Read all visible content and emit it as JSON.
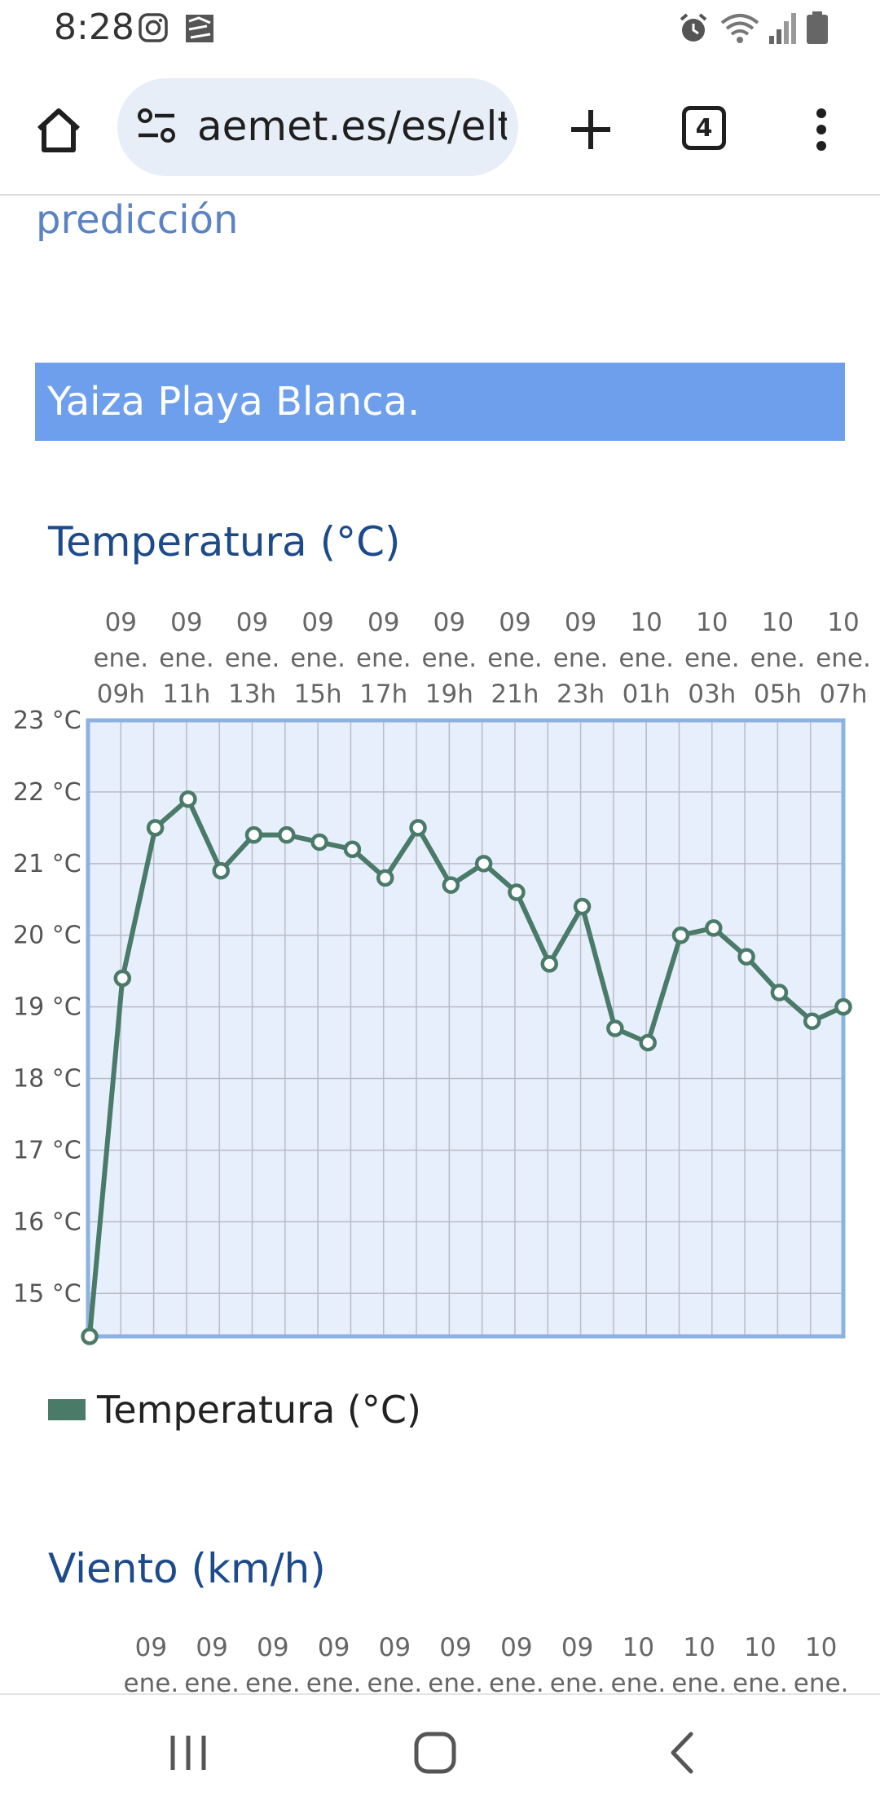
{
  "status": {
    "time": "8:28",
    "icons": [
      "instagram-icon",
      "app-icon",
      "alarm-icon",
      "wifi-icon",
      "signal-icon",
      "battery-icon"
    ]
  },
  "browser": {
    "url": "aemet.es/es/eltiempo/prediccion",
    "tab_count": "4",
    "icons": [
      "home-icon",
      "site-settings-icon",
      "new-tab-icon",
      "tabs-icon",
      "menu-icon"
    ]
  },
  "page": {
    "prediccion": "predicción",
    "location": "Yaiza Playa Blanca.",
    "temp_title": "Temperatura (°C)",
    "legend_label": "Temperatura (°C)",
    "wind_title": "Viento (km/h)"
  },
  "chart_data": {
    "type": "line",
    "title": "Temperatura (°C)",
    "x_tick_labels": [
      [
        "09",
        "ene.",
        "09h"
      ],
      [
        "09",
        "ene.",
        "11h"
      ],
      [
        "09",
        "ene.",
        "13h"
      ],
      [
        "09",
        "ene.",
        "15h"
      ],
      [
        "09",
        "ene.",
        "17h"
      ],
      [
        "09",
        "ene.",
        "19h"
      ],
      [
        "09",
        "ene.",
        "21h"
      ],
      [
        "09",
        "ene.",
        "23h"
      ],
      [
        "10",
        "ene.",
        "01h"
      ],
      [
        "10",
        "ene.",
        "03h"
      ],
      [
        "10",
        "ene.",
        "05h"
      ],
      [
        "10",
        "ene.",
        "07h"
      ]
    ],
    "y_ticks": [
      "15 °C",
      "16 °C",
      "17 °C",
      "18 °C",
      "19 °C",
      "20 °C",
      "21 °C",
      "22 °C",
      "23 °C"
    ],
    "ylim": [
      14.4,
      23
    ],
    "grid": true,
    "legend": "bottom-left",
    "series": [
      {
        "name": "Temperatura (°C)",
        "color": "#4a7a68",
        "values": [
          14.4,
          19.4,
          21.5,
          21.9,
          20.9,
          21.4,
          21.4,
          21.3,
          21.2,
          20.8,
          21.5,
          20.7,
          21.0,
          20.6,
          19.6,
          20.4,
          18.7,
          18.5,
          20.0,
          20.1,
          19.7,
          19.2,
          18.8,
          19.0
        ]
      }
    ]
  },
  "wind_chart": {
    "x_tick_labels": [
      [
        "09",
        "ene."
      ],
      [
        "09",
        "ene."
      ],
      [
        "09",
        "ene."
      ],
      [
        "09",
        "ene."
      ],
      [
        "09",
        "ene."
      ],
      [
        "09",
        "ene."
      ],
      [
        "09",
        "ene."
      ],
      [
        "09",
        "ene."
      ],
      [
        "10",
        "ene."
      ],
      [
        "10",
        "ene."
      ],
      [
        "10",
        "ene."
      ],
      [
        "10",
        "ene."
      ]
    ]
  },
  "nav": {
    "icons": [
      "recent-apps-icon",
      "home-nav-icon",
      "back-icon"
    ]
  }
}
